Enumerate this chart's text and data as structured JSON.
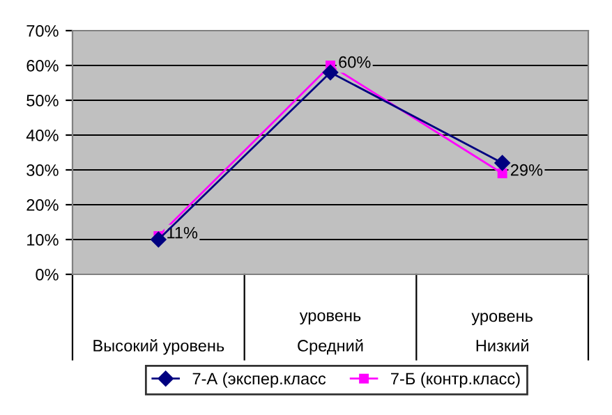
{
  "chart_data": {
    "type": "line",
    "categories": [
      "Высокий уровень",
      "уровень\nСредний",
      "уровень\nНизкий"
    ],
    "series": [
      {
        "name": "7-А (экспер.класс",
        "color": "#000080",
        "marker": "diamond",
        "values": [
          10,
          58,
          32
        ]
      },
      {
        "name": "7-Б (контр.класс)",
        "color": "#ff00ff",
        "marker": "square",
        "values": [
          11,
          60,
          29
        ],
        "value_labels": [
          "11%",
          "60%",
          "29%"
        ]
      }
    ],
    "ylim": [
      0,
      70
    ],
    "yticks": [
      {
        "value": 0,
        "label": "0%"
      },
      {
        "value": 10,
        "label": "10%"
      },
      {
        "value": 20,
        "label": "20%"
      },
      {
        "value": 30,
        "label": "30%"
      },
      {
        "value": 40,
        "label": "40%"
      },
      {
        "value": 50,
        "label": "50%"
      },
      {
        "value": 60,
        "label": "60%"
      },
      {
        "value": 70,
        "label": "70%"
      }
    ],
    "grid": "y",
    "legend": "bottom",
    "line_style": "solid"
  }
}
